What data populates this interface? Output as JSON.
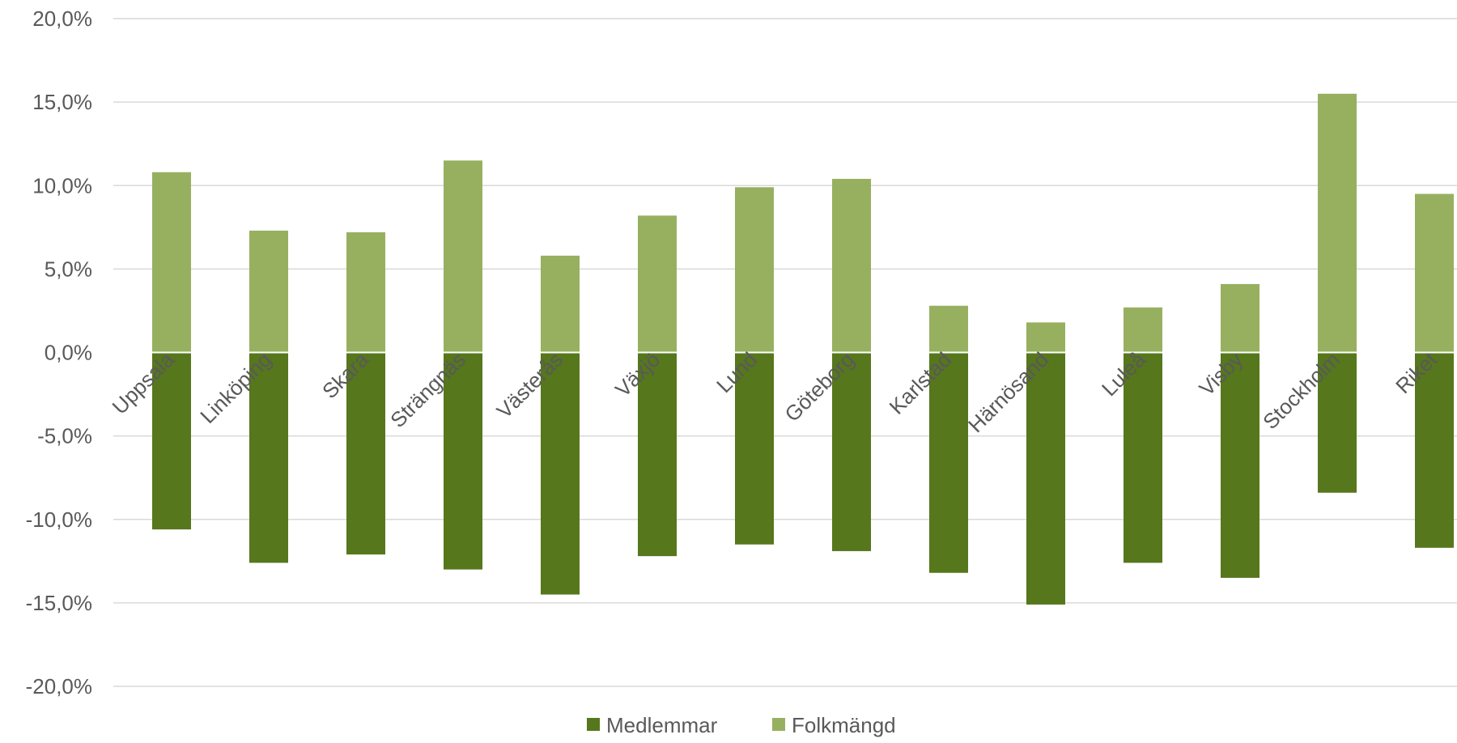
{
  "chart_data": {
    "type": "bar",
    "stacked": true,
    "categories": [
      "Uppsala",
      "Linköping",
      "Skara",
      "Strängnäs",
      "Västerås",
      "Växjö",
      "Lund",
      "Göteborg",
      "Karlstad",
      "Härnösand",
      "Luleå",
      "Visby",
      "Stockholm",
      "Riket"
    ],
    "series": [
      {
        "name": "Medlemmar",
        "color": "#56771c",
        "values": [
          -10.6,
          -12.6,
          -12.1,
          -13.0,
          -14.5,
          -12.2,
          -11.5,
          -11.9,
          -13.2,
          -15.1,
          -12.6,
          -13.5,
          -8.4,
          -11.7
        ]
      },
      {
        "name": "Folkmängd",
        "color": "#97b060",
        "values": [
          10.8,
          7.3,
          7.2,
          11.5,
          5.8,
          8.2,
          9.9,
          10.4,
          2.8,
          1.8,
          2.7,
          4.1,
          15.5,
          9.5
        ]
      }
    ],
    "ylim": [
      -20,
      20
    ],
    "yticks": [
      -20,
      -15,
      -10,
      -5,
      0,
      5,
      10,
      15,
      20
    ],
    "ytick_labels": [
      "-20,0%",
      "-15,0%",
      "-10,0%",
      "-5,0%",
      "0,0%",
      "5,0%",
      "10,0%",
      "15,0%",
      "20,0%"
    ],
    "grid": true,
    "legend_position": "bottom",
    "title": "",
    "xlabel": "",
    "ylabel": "",
    "gridline_color": "#d9d9d9",
    "text_color": "#595959"
  }
}
